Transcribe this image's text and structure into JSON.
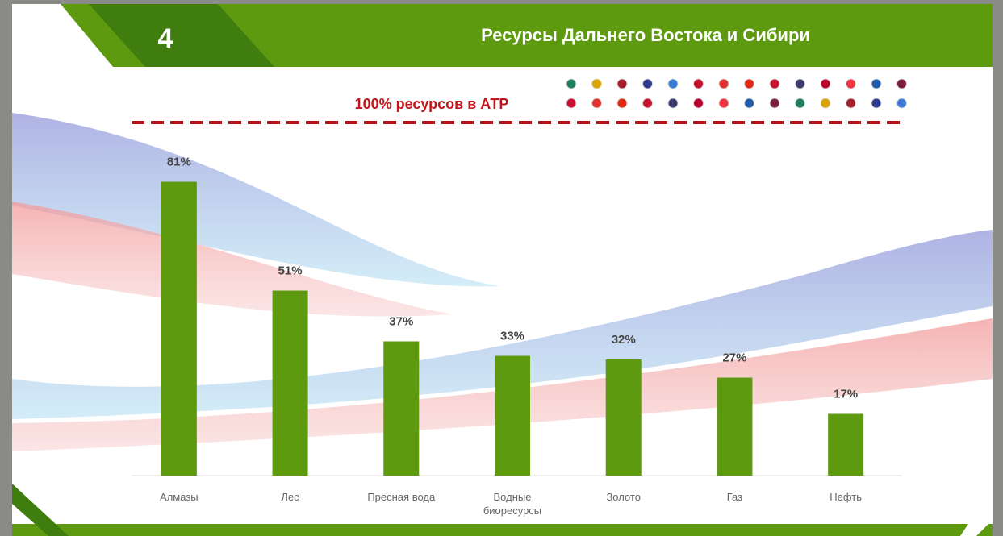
{
  "slide_number": "4",
  "chart_data": {
    "type": "bar",
    "title": "Ресурсы Дальнего Востока и Сибири",
    "annotation": "100% ресурсов в АТР",
    "categories": [
      "Алмазы",
      "Лес",
      "Пресная вода",
      "Водные биоресурсы",
      "Золото",
      "Газ",
      "Нефть"
    ],
    "values": [
      81,
      51,
      37,
      33,
      32,
      27,
      17
    ],
    "value_labels": [
      "81%",
      "51%",
      "37%",
      "33%",
      "32%",
      "27%",
      "17%"
    ],
    "color": "#5e9a10",
    "ylim": [
      0,
      100
    ]
  }
}
